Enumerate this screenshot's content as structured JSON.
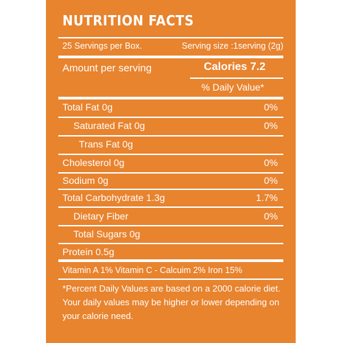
{
  "title": "NUTRITION FACTS",
  "servings_per_box": "25 Servings per Box.",
  "serving_size": "Serving size :1serving (2g)",
  "amount_per_serving": "Amount per serving",
  "calories": "Calories 7.2",
  "daily_value_header": "% Daily Value*",
  "rows": [
    {
      "label": "Total Fat 0g",
      "dv": "0%"
    },
    {
      "label": "Saturated Fat 0g",
      "dv": "0%"
    },
    {
      "label": "Trans  Fat 0g",
      "dv": ""
    },
    {
      "label": "Cholesterol 0g",
      "dv": "0%"
    },
    {
      "label": "Sodium 0g",
      "dv": "0%"
    },
    {
      "label": "Total Carbohydrate 1.3g",
      "dv": "1.7%"
    },
    {
      "label": "Dietary Fiber",
      "dv": "0%"
    },
    {
      "label": "Total Sugars 0g",
      "dv": ""
    },
    {
      "label": "Protein 0.5g",
      "dv": ""
    }
  ],
  "vitamins": "Vitamin A 1%  Vitamin C -  Calcuim 2%  Iron 15%",
  "footnote": "*Percent Daily Values are based on a 2000 calorie diet. Your daily values may be higher or lower depending on your calorie need.",
  "colors": {
    "panel": "#e8832e",
    "text": "#ffffff"
  }
}
